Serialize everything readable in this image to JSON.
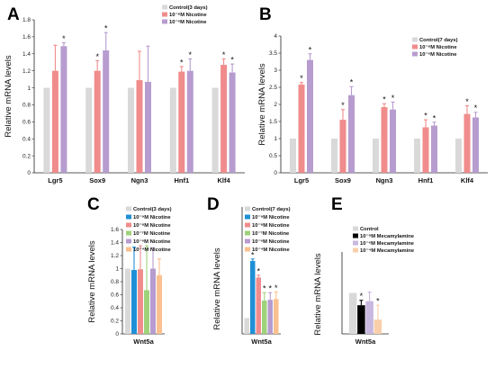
{
  "colors": {
    "control": "#d9d9d9",
    "nic_low": "#f08c8c",
    "nic_high": "#b79ccf",
    "blue": "#1f8fd6",
    "green": "#9ed37a",
    "orange": "#fbc08f",
    "black": "#000000",
    "lavender": "#c8b7de",
    "peach": "#f9cfab"
  },
  "chart_data": [
    {
      "type": "bar",
      "panel": "A",
      "ylabel": "Relative mRNA levels",
      "ylim": [
        0,
        1.8
      ],
      "yticks": [
        0,
        0.2,
        0.4,
        0.6,
        0.8,
        1,
        1.2,
        1.4,
        1.6,
        1.8
      ],
      "categories": [
        "Lgr5",
        "Sox9",
        "Ngn3",
        "Hnf1",
        "Klf4"
      ],
      "legend_position": "top-right",
      "series": [
        {
          "name": "Control(3 days)",
          "color_key": "control",
          "values": [
            1,
            1,
            1,
            1,
            1
          ],
          "errors": [
            0,
            0,
            0,
            0,
            0
          ],
          "sig": [
            false,
            false,
            false,
            false,
            false
          ]
        },
        {
          "name": "10⁻⁸M Nicotine",
          "color_key": "nic_low",
          "values": [
            1.2,
            1.2,
            1.09,
            1.19,
            1.27
          ],
          "errors": [
            0.3,
            0.12,
            0.34,
            0.06,
            0.07
          ],
          "sig": [
            false,
            true,
            false,
            true,
            true
          ]
        },
        {
          "name": "10⁻⁶M Nicotine",
          "color_key": "nic_high",
          "values": [
            1.49,
            1.44,
            1.07,
            1.2,
            1.18
          ],
          "errors": [
            0.04,
            0.21,
            0.42,
            0.14,
            0.1
          ],
          "sig": [
            true,
            true,
            false,
            true,
            true
          ]
        }
      ]
    },
    {
      "type": "bar",
      "panel": "B",
      "ylabel": "Relative mRNA levels",
      "ylim": [
        0,
        4.0
      ],
      "yticks": [
        0,
        0.5,
        1.0,
        1.5,
        2.0,
        2.5,
        3.0,
        3.5,
        4.0
      ],
      "categories": [
        "Lgr5",
        "Sox9",
        "Ngn3",
        "Hnf1",
        "Klf4"
      ],
      "legend_position": "top-right",
      "series": [
        {
          "name": "Control(7 days)",
          "color_key": "control",
          "values": [
            1,
            1,
            1,
            1,
            1
          ],
          "errors": [
            0,
            0,
            0,
            0,
            0
          ],
          "sig": [
            false,
            false,
            false,
            false,
            false
          ]
        },
        {
          "name": "10⁻⁸M Nicotine",
          "color_key": "nic_low",
          "values": [
            2.58,
            1.55,
            1.92,
            1.33,
            1.72
          ],
          "errors": [
            0.06,
            0.3,
            0.1,
            0.22,
            0.24
          ],
          "sig": [
            true,
            true,
            true,
            true,
            true
          ]
        },
        {
          "name": "10⁻⁶M Nicotine",
          "color_key": "nic_high",
          "values": [
            3.3,
            2.27,
            1.85,
            1.38,
            1.62
          ],
          "errors": [
            0.18,
            0.25,
            0.22,
            0.1,
            0.15
          ],
          "sig": [
            true,
            true,
            true,
            true,
            true
          ]
        }
      ]
    },
    {
      "type": "bar",
      "panel": "C",
      "ylabel": "Relative mRNA levels",
      "ylim": [
        0,
        1.6
      ],
      "yticks": [
        0,
        0.2,
        0.4,
        0.6,
        0.8,
        1,
        1.2,
        1.4,
        1.6
      ],
      "categories": [
        "Wnt5a"
      ],
      "legend_position": "top-right",
      "series": [
        {
          "name": "Control(3 days)",
          "color_key": "control",
          "values": [
            1
          ],
          "errors": [
            0
          ],
          "sig": [
            false
          ]
        },
        {
          "name": "10⁻⁹M Nicotine",
          "color_key": "blue",
          "values": [
            0.98
          ],
          "errors": [
            0.35
          ],
          "sig": [
            false
          ]
        },
        {
          "name": "10⁻⁸M Nicotine",
          "color_key": "nic_low",
          "values": [
            0.99
          ],
          "errors": [
            0.36
          ],
          "sig": [
            false
          ]
        },
        {
          "name": "10⁻⁷M Nicotine",
          "color_key": "green",
          "values": [
            0.67
          ],
          "errors": [
            0.68
          ],
          "sig": [
            false
          ]
        },
        {
          "name": "10⁻⁶M Nicotine",
          "color_key": "nic_high",
          "values": [
            1.0
          ],
          "errors": [
            0.32
          ],
          "sig": [
            false
          ]
        },
        {
          "name": "10⁻⁴M Nicotine",
          "color_key": "orange",
          "values": [
            0.9
          ],
          "errors": [
            0.25
          ],
          "sig": [
            false
          ]
        }
      ]
    },
    {
      "type": "bar",
      "panel": "D",
      "ylabel": "Relative mRNA levels",
      "ylim": [
        0,
        8
      ],
      "yticks": [],
      "categories": [
        "Wnt5a"
      ],
      "legend_position": "top-right",
      "series": [
        {
          "name": "Control(7 days)",
          "color_key": "control",
          "values": [
            1
          ],
          "errors": [
            0
          ],
          "sig": [
            false
          ]
        },
        {
          "name": "10⁻⁹M Nicotine",
          "color_key": "blue",
          "values": [
            4.6
          ],
          "errors": [
            0.12
          ],
          "sig": [
            true
          ]
        },
        {
          "name": "10⁻⁸M Nicotine",
          "color_key": "nic_low",
          "values": [
            3.55
          ],
          "errors": [
            0.15
          ],
          "sig": [
            true
          ]
        },
        {
          "name": "10⁻⁷M Nicotine",
          "color_key": "green",
          "values": [
            2.1
          ],
          "errors": [
            0.5
          ],
          "sig": [
            true
          ]
        },
        {
          "name": "10⁻⁶M Nicotine",
          "color_key": "nic_high",
          "values": [
            2.15
          ],
          "errors": [
            0.45
          ],
          "sig": [
            true
          ]
        },
        {
          "name": "10⁻⁴M Nicotine",
          "color_key": "orange",
          "values": [
            2.2
          ],
          "errors": [
            0.45
          ],
          "sig": [
            true
          ]
        }
      ]
    },
    {
      "type": "bar",
      "panel": "E",
      "ylabel": "Relative mRNA levels",
      "ylim": [
        0,
        2.0
      ],
      "yticks": [],
      "categories": [
        "Wnt5a"
      ],
      "legend_position": "top-right",
      "series": [
        {
          "name": "Control",
          "color_key": "control",
          "values": [
            1
          ],
          "errors": [
            0
          ],
          "sig": [
            false
          ]
        },
        {
          "name": "10⁻⁸M Mecamylamine",
          "color_key": "black",
          "values": [
            0.7
          ],
          "errors": [
            0.12
          ],
          "sig": [
            true
          ]
        },
        {
          "name": "10⁻⁶M Mecamylamine",
          "color_key": "lavender",
          "values": [
            0.8
          ],
          "errors": [
            0.22
          ],
          "sig": [
            false
          ]
        },
        {
          "name": "10⁻⁴M Mecamylamine",
          "color_key": "peach",
          "values": [
            0.35
          ],
          "errors": [
            0.35
          ],
          "sig": [
            true
          ]
        }
      ]
    }
  ]
}
